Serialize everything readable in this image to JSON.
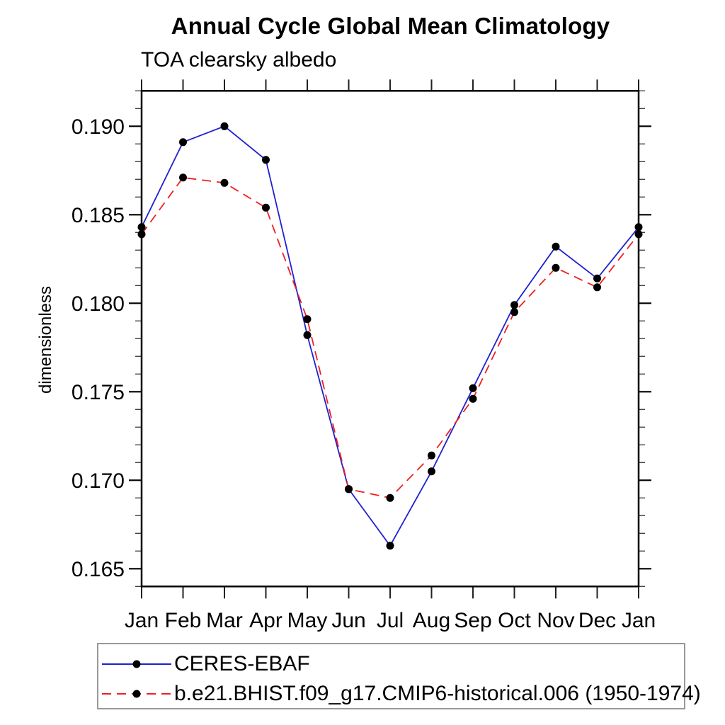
{
  "chart_data": {
    "type": "line",
    "title": "Annual Cycle Global Mean Climatology",
    "subtitle": "TOA clearsky albedo",
    "ylabel": "dimensionless",
    "xlabel": "",
    "categories": [
      "Jan",
      "Feb",
      "Mar",
      "Apr",
      "May",
      "Jun",
      "Jul",
      "Aug",
      "Sep",
      "Oct",
      "Nov",
      "Dec",
      "Jan"
    ],
    "ylim": [
      0.164,
      0.192
    ],
    "y_major_ticks": [
      0.165,
      0.17,
      0.175,
      0.18,
      0.185,
      0.19
    ],
    "y_minor_step": 0.001,
    "grid": false,
    "legend_position": "bottom-left",
    "series": [
      {
        "name": "CERES-EBAF",
        "color": "#2020d0",
        "line_style": "solid",
        "marker": "filled-circle",
        "marker_color": "#000000",
        "values": [
          0.1843,
          0.1891,
          0.19,
          0.1881,
          0.1782,
          0.1695,
          0.1663,
          0.1705,
          0.1752,
          0.1799,
          0.1832,
          0.1814,
          0.1843
        ]
      },
      {
        "name": "b.e21.BHIST.f09_g17.CMIP6-historical.006 (1950-1974)",
        "color": "#ee2020",
        "line_style": "dashed",
        "marker": "filled-circle",
        "marker_color": "#000000",
        "values": [
          0.1839,
          0.1871,
          0.1868,
          0.1854,
          0.1791,
          0.1695,
          0.169,
          0.1714,
          0.1746,
          0.1795,
          0.182,
          0.1809,
          0.1839
        ]
      }
    ],
    "colors": {
      "axis": "#000000",
      "minor_tick": "#444444",
      "month_tick": "#222222",
      "legend_border": "#999999",
      "background": "#ffffff"
    }
  }
}
